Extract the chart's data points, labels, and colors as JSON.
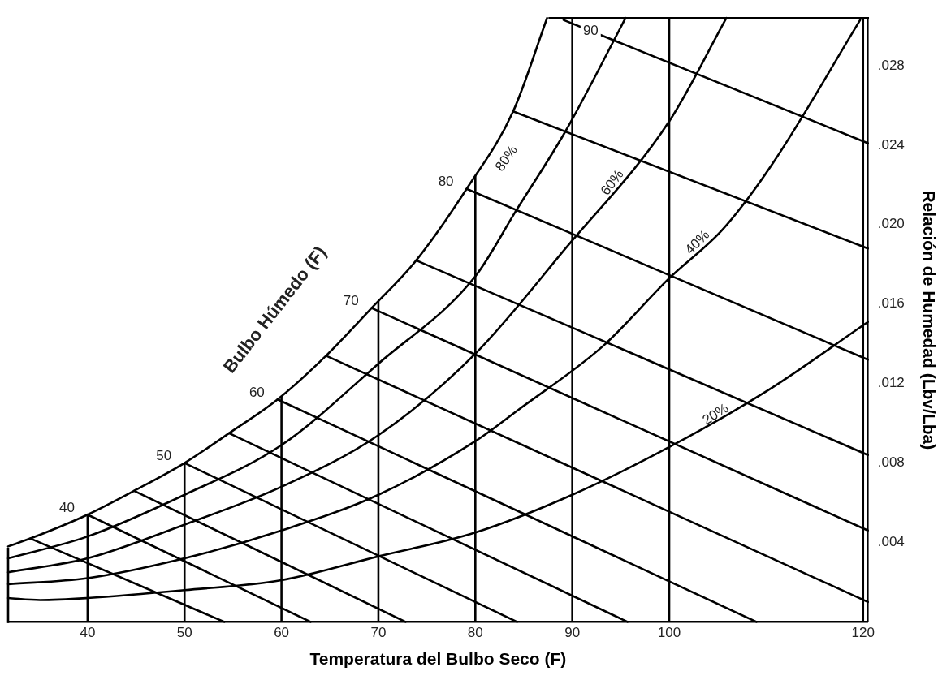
{
  "chart_data": {
    "type": "line",
    "xlabel": "Temperatura del Bulbo Seco (F)",
    "ylabel": "Relación de Humedad (Lbv/Lba)",
    "xlim": [
      31.8,
      120.5
    ],
    "ylim": [
      0,
      0.0304
    ],
    "xticks": [
      40,
      50,
      60,
      70,
      80,
      90,
      100,
      120
    ],
    "yticks": [
      {
        "value": 0.004,
        "label": ".004"
      },
      {
        "value": 0.008,
        "label": ".008"
      },
      {
        "value": 0.012,
        "label": ".012"
      },
      {
        "value": 0.016,
        "label": ".016"
      },
      {
        "value": 0.02,
        "label": ".020"
      },
      {
        "value": 0.024,
        "label": ".024"
      },
      {
        "value": 0.028,
        "label": ".028"
      }
    ],
    "grid": "x",
    "legend": false,
    "marker": "none",
    "series": [
      {
        "type": "line",
        "color": "#000000",
        "x": [
          31.8,
          34.1,
          40,
          44.8,
          50,
          54.6,
          59.6,
          64.6,
          69.3,
          73.9,
          79.1,
          83.9,
          87.4
        ],
        "values": [
          0.0038,
          0.0042,
          0.0054,
          0.0066,
          0.008,
          0.0095,
          0.0112,
          0.0134,
          0.0158,
          0.0182,
          0.0218,
          0.0257,
          0.0304
        ]
      },
      {
        "type": "line",
        "color": "#000000",
        "x": [
          31.8,
          40,
          50,
          60,
          70,
          80,
          84.2,
          89.3,
          95.5
        ],
        "values": [
          0.0032,
          0.0043,
          0.0064,
          0.0089,
          0.013,
          0.0174,
          0.0207,
          0.0247,
          0.0304
        ]
      },
      {
        "type": "line",
        "color": "#000000",
        "x": [
          31.8,
          40,
          50,
          60,
          70,
          80,
          89.3,
          100,
          105.9
        ],
        "values": [
          0.0025,
          0.0032,
          0.0049,
          0.0068,
          0.0094,
          0.0135,
          0.0188,
          0.0252,
          0.0304
        ]
      },
      {
        "type": "line",
        "color": "#000000",
        "x": [
          31.8,
          40,
          50,
          60,
          70,
          80,
          84.5,
          93.2,
          100,
          105.6,
          110.7,
          119.7
        ],
        "values": [
          0.0019,
          0.0022,
          0.0032,
          0.0046,
          0.0064,
          0.0091,
          0.0107,
          0.0139,
          0.0173,
          0.0198,
          0.0231,
          0.0303
        ]
      },
      {
        "type": "line",
        "color": "#000000",
        "x": [
          31.8,
          35.1,
          40,
          50,
          60,
          70,
          80,
          90,
          100,
          110,
          120.5
        ],
        "values": [
          0.0012,
          0.0011,
          0.0012,
          0.0016,
          0.0021,
          0.0033,
          0.0045,
          0.0064,
          0.0088,
          0.0116,
          0.0151
        ]
      },
      {
        "type": "line",
        "color": "#000000",
        "x": [
          34.1,
          54.1
        ],
        "values": [
          0.0042,
          0
        ]
      },
      {
        "type": "line",
        "color": "#000000",
        "x": [
          40,
          63.0
        ],
        "values": [
          0.0054,
          0
        ]
      },
      {
        "type": "line",
        "color": "#000000",
        "x": [
          44.8,
          72.8
        ],
        "values": [
          0.0066,
          0
        ]
      },
      {
        "type": "line",
        "color": "#000000",
        "x": [
          50,
          84.3
        ],
        "values": [
          0.008,
          0
        ]
      },
      {
        "type": "line",
        "color": "#000000",
        "x": [
          54.6,
          95.7
        ],
        "values": [
          0.0095,
          0
        ]
      },
      {
        "type": "line",
        "color": "#000000",
        "x": [
          59.6,
          109.0
        ],
        "values": [
          0.0112,
          0
        ]
      },
      {
        "type": "line",
        "color": "#000000",
        "x": [
          64.6,
          120.5
        ],
        "values": [
          0.0134,
          0.001
        ]
      },
      {
        "type": "line",
        "color": "#000000",
        "x": [
          69.3,
          120.5
        ],
        "values": [
          0.0158,
          0.0046
        ]
      },
      {
        "type": "line",
        "color": "#000000",
        "x": [
          73.9,
          120.5
        ],
        "values": [
          0.0182,
          0.0084
        ]
      },
      {
        "type": "line",
        "color": "#000000",
        "x": [
          79.1,
          120.5
        ],
        "values": [
          0.0218,
          0.0132
        ]
      },
      {
        "type": "line",
        "color": "#000000",
        "x": [
          83.9,
          120.5
        ],
        "values": [
          0.0257,
          0.0188
        ]
      },
      {
        "type": "line",
        "color": "#000000",
        "x": [
          89.1,
          120.5
        ],
        "values": [
          0.0303,
          0.0241
        ]
      }
    ],
    "annotations": [
      "Bulbo Húmedo (F)",
      {
        "text": "40",
        "x": 40,
        "y": 0.0054
      },
      {
        "text": "50",
        "x": 50,
        "y": 0.008
      },
      {
        "text": "60",
        "x": 59.6,
        "y": 0.0112
      },
      {
        "text": "70",
        "x": 69.3,
        "y": 0.0158
      },
      {
        "text": "80",
        "x": 79.1,
        "y": 0.0218
      },
      {
        "text": "90",
        "x": 91.9,
        "y": 0.0295
      },
      "80%",
      "60%",
      "40%",
      "20%"
    ]
  }
}
